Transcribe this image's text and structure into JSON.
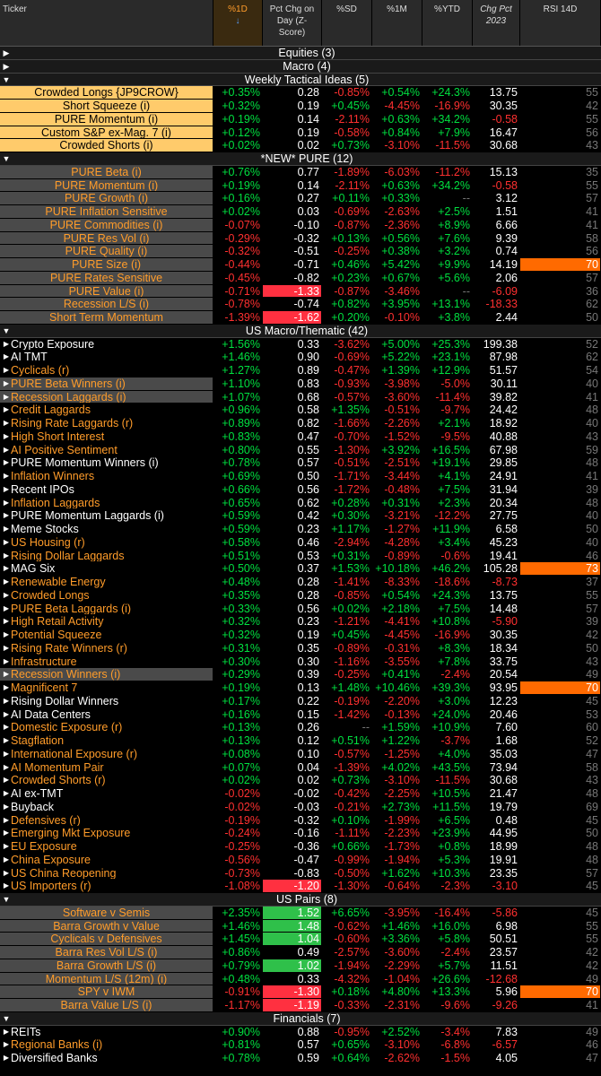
{
  "headers": [
    {
      "label": "Ticker"
    },
    {
      "label": "%1D",
      "sorted": true,
      "arrow": "↓"
    },
    {
      "label": "Pct Chg on Day (Z-Score)"
    },
    {
      "label": "%SD"
    },
    {
      "label": "%1M"
    },
    {
      "label": "%YTD"
    },
    {
      "label": "Chg Pct 2023",
      "italic": true
    },
    {
      "label": "RSI 14D"
    }
  ],
  "sections": [
    {
      "name": "Equities (3)",
      "collapsed": true,
      "style": "w",
      "align": "left",
      "rows": []
    },
    {
      "name": "Macro (4)",
      "collapsed": true,
      "style": "w",
      "align": "left",
      "rows": []
    },
    {
      "name": "Weekly Tactical Ideas (5)",
      "collapsed": false,
      "style": "hl",
      "align": "center",
      "rows": [
        [
          "Crowded Longs {JP9CROW}",
          "+0.35%",
          "0.28",
          "-0.85%",
          "+0.54%",
          "+24.3%",
          "13.75",
          "55"
        ],
        [
          "Short Squeeze (i)",
          "+0.32%",
          "0.19",
          "+0.45%",
          "-4.45%",
          "-16.9%",
          "30.35",
          "42"
        ],
        [
          "PURE Momentum (i)",
          "+0.19%",
          "0.14",
          "-2.11%",
          "+0.63%",
          "+34.2%",
          "-0.58",
          "55"
        ],
        [
          "Custom S&P ex-Mag. 7 (i)",
          "+0.12%",
          "0.19",
          "-0.58%",
          "+0.84%",
          "+7.9%",
          "16.47",
          "56"
        ],
        [
          "Crowded Shorts (i)",
          "+0.02%",
          "0.02",
          "+0.73%",
          "-3.10%",
          "-11.5%",
          "30.68",
          "43"
        ]
      ]
    },
    {
      "name": "*NEW* PURE (12)",
      "collapsed": false,
      "style": "gbg",
      "align": "center",
      "rows": [
        [
          "PURE Beta (i)",
          "+0.76%",
          "0.77",
          "-1.89%",
          "-6.03%",
          "-11.2%",
          "15.13",
          "35"
        ],
        [
          "PURE Momentum (i)",
          "+0.19%",
          "0.14",
          "-2.11%",
          "+0.63%",
          "+34.2%",
          "-0.58",
          "55"
        ],
        [
          "PURE Growth (i)",
          "+0.16%",
          "0.27",
          "+0.11%",
          "+0.33%",
          "--",
          "3.12",
          "57"
        ],
        [
          "PURE Inflation Sensitive",
          "+0.02%",
          "0.03",
          "-0.69%",
          "-2.63%",
          "+2.5%",
          "1.51",
          "41"
        ],
        [
          "PURE Commodities (i)",
          "-0.07%",
          "-0.10",
          "-0.87%",
          "-2.36%",
          "+8.9%",
          "6.66",
          "41"
        ],
        [
          "PURE Res Vol (i)",
          "-0.29%",
          "-0.32",
          "+0.13%",
          "+0.56%",
          "+7.6%",
          "9.39",
          "58"
        ],
        [
          "PURE Quality (i)",
          "-0.32%",
          "-0.51",
          "-0.25%",
          "+0.38%",
          "+3.2%",
          "0.74",
          "56"
        ],
        [
          "PURE Size (i)",
          "-0.44%",
          "-0.71",
          "+0.46%",
          "+5.42%",
          "+9.9%",
          "14.19",
          "70"
        ],
        [
          "PURE Rates Sensitive",
          "-0.45%",
          "-0.82",
          "+0.23%",
          "+0.67%",
          "+5.6%",
          "2.06",
          "57"
        ],
        [
          "PURE Value (i)",
          "-0.71%",
          "-1.33",
          "-0.87%",
          "-3.46%",
          "--",
          "-6.09",
          "36"
        ],
        [
          "Recession L/S (i)",
          "-0.78%",
          "-0.74",
          "+0.82%",
          "+3.95%",
          "+13.1%",
          "-18.33",
          "62"
        ],
        [
          "Short Term Momentum",
          "-1.39%",
          "-1.62",
          "+0.20%",
          "-0.10%",
          "+3.8%",
          "2.44",
          "50"
        ]
      ]
    },
    {
      "name": "US Macro/Thematic (42)",
      "collapsed": false,
      "style": "w",
      "align": "left",
      "bullets": true,
      "rows": [
        [
          "Crypto Exposure",
          "+1.56%",
          "0.33",
          "-3.62%",
          "+5.00%",
          "+25.3%",
          "199.38",
          "52"
        ],
        [
          "AI TMT",
          "+1.46%",
          "0.90",
          "-0.69%",
          "+5.22%",
          "+23.1%",
          "87.98",
          "62"
        ],
        [
          "Cyclicals (r)",
          "+1.27%",
          "0.89",
          "-0.47%",
          "+1.39%",
          "+12.9%",
          "51.57",
          "54"
        ],
        [
          "PURE Beta Winners (i)",
          "+1.10%",
          "0.83",
          "-0.93%",
          "-3.98%",
          "-5.0%",
          "30.11",
          "40"
        ],
        [
          "Recession Laggards (i)",
          "+1.07%",
          "0.68",
          "-0.57%",
          "-3.60%",
          "-11.4%",
          "39.82",
          "41"
        ],
        [
          "Credit Laggards",
          "+0.96%",
          "0.58",
          "+1.35%",
          "-0.51%",
          "-9.7%",
          "24.42",
          "48"
        ],
        [
          "Rising Rate Laggards (r)",
          "+0.89%",
          "0.82",
          "-1.66%",
          "-2.26%",
          "+2.1%",
          "18.92",
          "40"
        ],
        [
          "High Short Interest",
          "+0.83%",
          "0.47",
          "-0.70%",
          "-1.52%",
          "-9.5%",
          "40.88",
          "43"
        ],
        [
          "AI Positive Sentiment",
          "+0.80%",
          "0.55",
          "-1.30%",
          "+3.92%",
          "+16.5%",
          "67.98",
          "59"
        ],
        [
          "PURE Momentum Winners (i)",
          "+0.78%",
          "0.57",
          "-0.51%",
          "-2.51%",
          "+19.1%",
          "29.85",
          "48"
        ],
        [
          "Inflation Winners",
          "+0.69%",
          "0.50",
          "-1.71%",
          "-3.44%",
          "+4.1%",
          "24.91",
          "41"
        ],
        [
          "Recent IPOs",
          "+0.66%",
          "0.56",
          "-1.72%",
          "-0.48%",
          "+7.5%",
          "31.94",
          "39"
        ],
        [
          "Inflation Laggards",
          "+0.65%",
          "0.62",
          "+0.28%",
          "+0.31%",
          "+2.3%",
          "20.34",
          "48"
        ],
        [
          "PURE Momentum Laggards (i)",
          "+0.59%",
          "0.42",
          "+0.30%",
          "-3.21%",
          "-12.2%",
          "27.75",
          "40"
        ],
        [
          "Meme Stocks",
          "+0.59%",
          "0.23",
          "+1.17%",
          "-1.27%",
          "+11.9%",
          "6.58",
          "50"
        ],
        [
          "US Housing (r)",
          "+0.58%",
          "0.46",
          "-2.94%",
          "-4.28%",
          "+3.4%",
          "45.23",
          "40"
        ],
        [
          "Rising Dollar Laggards",
          "+0.51%",
          "0.53",
          "+0.31%",
          "-0.89%",
          "-0.6%",
          "19.41",
          "46"
        ],
        [
          "MAG Six",
          "+0.50%",
          "0.37",
          "+1.53%",
          "+10.18%",
          "+46.2%",
          "105.28",
          "73"
        ],
        [
          "Renewable Energy",
          "+0.48%",
          "0.28",
          "-1.41%",
          "-8.33%",
          "-18.6%",
          "-8.73",
          "37"
        ],
        [
          "Crowded Longs",
          "+0.35%",
          "0.28",
          "-0.85%",
          "+0.54%",
          "+24.3%",
          "13.75",
          "55"
        ],
        [
          "PURE Beta Laggards (i)",
          "+0.33%",
          "0.56",
          "+0.02%",
          "+2.18%",
          "+7.5%",
          "14.48",
          "57"
        ],
        [
          "High Retail Activity",
          "+0.32%",
          "0.23",
          "-1.21%",
          "-4.41%",
          "+10.8%",
          "-5.90",
          "39"
        ],
        [
          "Potential Squeeze",
          "+0.32%",
          "0.19",
          "+0.45%",
          "-4.45%",
          "-16.9%",
          "30.35",
          "42"
        ],
        [
          "Rising Rate Winners (r)",
          "+0.31%",
          "0.35",
          "-0.89%",
          "-0.31%",
          "+8.3%",
          "18.34",
          "50"
        ],
        [
          "Infrastructure",
          "+0.30%",
          "0.30",
          "-1.16%",
          "-3.55%",
          "+7.8%",
          "33.75",
          "43"
        ],
        [
          "Recession Winners (i)",
          "+0.29%",
          "0.39",
          "-0.25%",
          "+0.41%",
          "-2.4%",
          "20.54",
          "49"
        ],
        [
          "Magnificent 7",
          "+0.19%",
          "0.13",
          "+1.48%",
          "+10.46%",
          "+39.3%",
          "93.95",
          "70"
        ],
        [
          "Rising Dollar Winners",
          "+0.17%",
          "0.22",
          "-0.19%",
          "-2.20%",
          "+3.0%",
          "12.23",
          "45"
        ],
        [
          "AI Data Centers",
          "+0.16%",
          "0.15",
          "-1.42%",
          "-0.13%",
          "+24.0%",
          "20.46",
          "53"
        ],
        [
          "Domestic Exposure (r)",
          "+0.13%",
          "0.26",
          "--",
          "+1.59%",
          "+10.9%",
          "7.60",
          "60"
        ],
        [
          "Stagflation",
          "+0.13%",
          "0.12",
          "+0.51%",
          "+1.22%",
          "-3.7%",
          "1.68",
          "52"
        ],
        [
          "International Exposure (r)",
          "+0.08%",
          "0.10",
          "-0.57%",
          "-1.25%",
          "+4.0%",
          "35.03",
          "47"
        ],
        [
          "AI Momentum Pair",
          "+0.07%",
          "0.04",
          "-1.39%",
          "+4.02%",
          "+43.5%",
          "73.94",
          "58"
        ],
        [
          "Crowded Shorts (r)",
          "+0.02%",
          "0.02",
          "+0.73%",
          "-3.10%",
          "-11.5%",
          "30.68",
          "43"
        ],
        [
          "AI ex-TMT",
          "-0.02%",
          "-0.02",
          "-0.42%",
          "-2.25%",
          "+10.5%",
          "21.47",
          "48"
        ],
        [
          "Buyback",
          "-0.02%",
          "-0.03",
          "-0.21%",
          "+2.73%",
          "+11.5%",
          "19.79",
          "69"
        ],
        [
          "Defensives (r)",
          "-0.19%",
          "-0.32",
          "+0.10%",
          "-1.99%",
          "+6.5%",
          "0.48",
          "45"
        ],
        [
          "Emerging Mkt Exposure",
          "-0.24%",
          "-0.16",
          "-1.11%",
          "-2.23%",
          "+23.9%",
          "44.95",
          "50"
        ],
        [
          "EU Exposure",
          "-0.25%",
          "-0.36",
          "+0.66%",
          "-1.73%",
          "+0.8%",
          "18.99",
          "48"
        ],
        [
          "China Exposure",
          "-0.56%",
          "-0.47",
          "-0.99%",
          "-1.94%",
          "+5.3%",
          "19.91",
          "48"
        ],
        [
          "US China Reopening",
          "-0.73%",
          "-0.83",
          "-0.50%",
          "+1.62%",
          "+10.3%",
          "23.35",
          "57"
        ],
        [
          "US Importers (r)",
          "-1.08%",
          "-1.20",
          "-1.30%",
          "-0.64%",
          "-2.3%",
          "-3.10",
          "45"
        ]
      ]
    },
    {
      "name": "US Pairs (8)",
      "collapsed": false,
      "style": "gbg",
      "align": "center",
      "rows": [
        [
          "Software v Semis",
          "+2.35%",
          "1.52",
          "+6.65%",
          "-3.95%",
          "-16.4%",
          "-5.86",
          "45"
        ],
        [
          "Barra Growth v Value",
          "+1.46%",
          "1.48",
          "-0.62%",
          "+1.46%",
          "+16.0%",
          "6.98",
          "55"
        ],
        [
          "Cyclicals v Defensives",
          "+1.45%",
          "1.04",
          "-0.60%",
          "+3.36%",
          "+5.8%",
          "50.51",
          "55"
        ],
        [
          "Barra Res Vol L/S (i)",
          "+0.86%",
          "0.49",
          "-2.57%",
          "-3.60%",
          "-2.4%",
          "23.57",
          "42"
        ],
        [
          "Barra Growth L/S (i)",
          "+0.79%",
          "1.02",
          "-1.94%",
          "-2.29%",
          "+5.7%",
          "11.51",
          "42"
        ],
        [
          "Momentum L/S (12m) (i)",
          "+0.48%",
          "0.33",
          "-4.32%",
          "-1.04%",
          "+26.6%",
          "-12.68",
          "49"
        ],
        [
          "SPY v IWM",
          "-0.91%",
          "-1.30",
          "+0.18%",
          "+4.80%",
          "+13.3%",
          "5.96",
          "70"
        ],
        [
          "Barra Value L/S (i)",
          "-1.17%",
          "-1.19",
          "-0.33%",
          "-2.31%",
          "-9.6%",
          "-9.26",
          "41"
        ]
      ]
    },
    {
      "name": "Financials (7)",
      "collapsed": false,
      "style": "w",
      "align": "left",
      "bullets": true,
      "rows": [
        [
          "REITs",
          "+0.90%",
          "0.88",
          "-0.95%",
          "+2.52%",
          "-3.4%",
          "7.83",
          "49"
        ],
        [
          "Regional Banks (i)",
          "+0.81%",
          "0.57",
          "+0.65%",
          "-3.10%",
          "-6.8%",
          "-6.57",
          "46"
        ],
        [
          "Diversified Banks",
          "+0.78%",
          "0.59",
          "+0.64%",
          "-2.62%",
          "-1.5%",
          "4.05",
          "47"
        ]
      ]
    }
  ],
  "colors": {
    "positive": "#00e040",
    "negative": "#ff3030",
    "ticker": "#ff9c2a",
    "z_pos_high": "#2fc04a",
    "z_neg_high": "#ff3040",
    "rsi_high": "#ff6a00"
  }
}
